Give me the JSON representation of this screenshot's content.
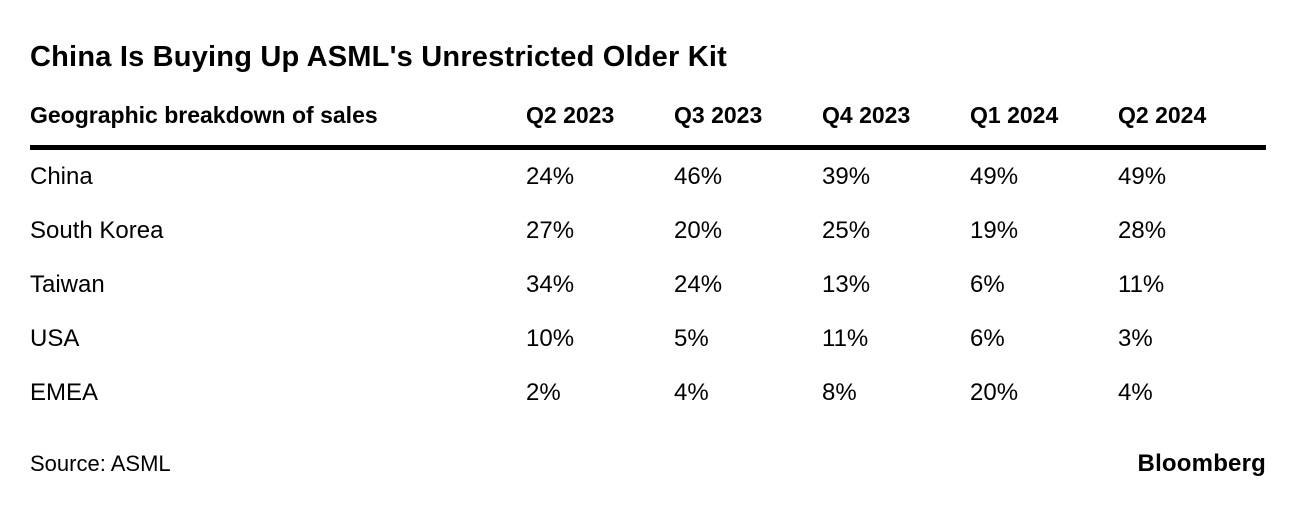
{
  "title": "China Is Buying Up ASML's Unrestricted Older Kit",
  "table": {
    "label_header": "Geographic breakdown of sales",
    "columns": [
      "Q2 2023",
      "Q3 2023",
      "Q4 2023",
      "Q1 2024",
      "Q2 2024"
    ],
    "rows": [
      {
        "label": "China",
        "values": [
          "24%",
          "46%",
          "39%",
          "49%",
          "49%"
        ]
      },
      {
        "label": "South Korea",
        "values": [
          "27%",
          "20%",
          "25%",
          "19%",
          "28%"
        ]
      },
      {
        "label": "Taiwan",
        "values": [
          "34%",
          "24%",
          "13%",
          "6%",
          "11%"
        ]
      },
      {
        "label": "USA",
        "values": [
          "10%",
          "5%",
          "11%",
          "6%",
          "3%"
        ]
      },
      {
        "label": "EMEA",
        "values": [
          "2%",
          "4%",
          "8%",
          "20%",
          "4%"
        ]
      }
    ]
  },
  "footer": {
    "source": "Source: ASML",
    "brand": "Bloomberg"
  },
  "colors": {
    "text": "#000000",
    "background": "#ffffff",
    "header_rule": "#000000"
  },
  "chart_data": {
    "type": "table",
    "title": "China Is Buying Up ASML's Unrestricted Older Kit",
    "subtitle": "Geographic breakdown of sales",
    "categories": [
      "Q2 2023",
      "Q3 2023",
      "Q4 2023",
      "Q1 2024",
      "Q2 2024"
    ],
    "series": [
      {
        "name": "China",
        "values": [
          24,
          46,
          39,
          49,
          49
        ]
      },
      {
        "name": "South Korea",
        "values": [
          27,
          20,
          25,
          19,
          28
        ]
      },
      {
        "name": "Taiwan",
        "values": [
          34,
          24,
          13,
          6,
          11
        ]
      },
      {
        "name": "USA",
        "values": [
          10,
          5,
          11,
          6,
          3
        ]
      },
      {
        "name": "EMEA",
        "values": [
          2,
          4,
          8,
          20,
          4
        ]
      }
    ],
    "unit": "%",
    "source": "ASML",
    "publisher": "Bloomberg"
  }
}
